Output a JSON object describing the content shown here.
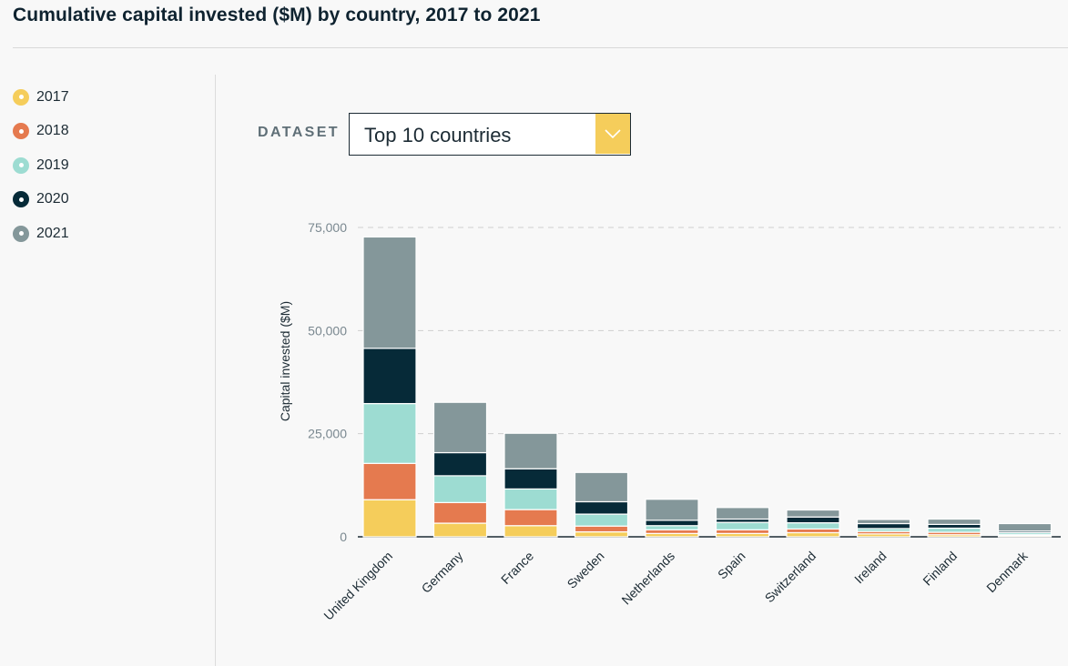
{
  "page": {
    "title": "Cumulative capital invested ($M) by country, 2017 to 2021"
  },
  "legend": {
    "items": [
      {
        "label": "2017",
        "color": "#f5cd5b"
      },
      {
        "label": "2018",
        "color": "#e57a4f"
      },
      {
        "label": "2019",
        "color": "#9ddcd2"
      },
      {
        "label": "2020",
        "color": "#062a38"
      },
      {
        "label": "2021",
        "color": "#84979a"
      }
    ]
  },
  "dataset": {
    "label": "DATASET",
    "selected": "Top 10 countries",
    "arrow_icon": "chevron-down-icon"
  },
  "chart_data": {
    "type": "bar",
    "stacked": true,
    "title": "",
    "xlabel": "",
    "ylabel": "Capital invested ($M)",
    "ylim": [
      0,
      75000
    ],
    "yticks": [
      0,
      25000,
      50000,
      75000
    ],
    "ytick_labels": [
      "0",
      "25,000",
      "50,000",
      "75,000"
    ],
    "grid": "horizontal dashed",
    "legend_position": "left sidebar",
    "categories": [
      "United Kingdom",
      "Germany",
      "France",
      "Sweden",
      "Netherlands",
      "Spain",
      "Switzerland",
      "Ireland",
      "Finland",
      "Denmark"
    ],
    "series": [
      {
        "name": "2017",
        "color": "#f5cd5b",
        "values": [
          9000,
          3300,
          2700,
          1200,
          800,
          800,
          1000,
          700,
          500,
          300
        ]
      },
      {
        "name": "2018",
        "color": "#e57a4f",
        "values": [
          8800,
          5000,
          3900,
          1400,
          900,
          900,
          900,
          600,
          600,
          200
        ]
      },
      {
        "name": "2019",
        "color": "#9ddcd2",
        "values": [
          14500,
          6500,
          5000,
          2900,
          1000,
          1800,
          1500,
          700,
          1000,
          500
        ]
      },
      {
        "name": "2020",
        "color": "#062a38",
        "values": [
          13400,
          5600,
          4900,
          3000,
          1300,
          800,
          1400,
          1200,
          900,
          400
        ]
      },
      {
        "name": "2021",
        "color": "#84979a",
        "values": [
          27000,
          12200,
          8600,
          7100,
          5100,
          2800,
          1700,
          1000,
          1300,
          1800
        ]
      }
    ]
  }
}
